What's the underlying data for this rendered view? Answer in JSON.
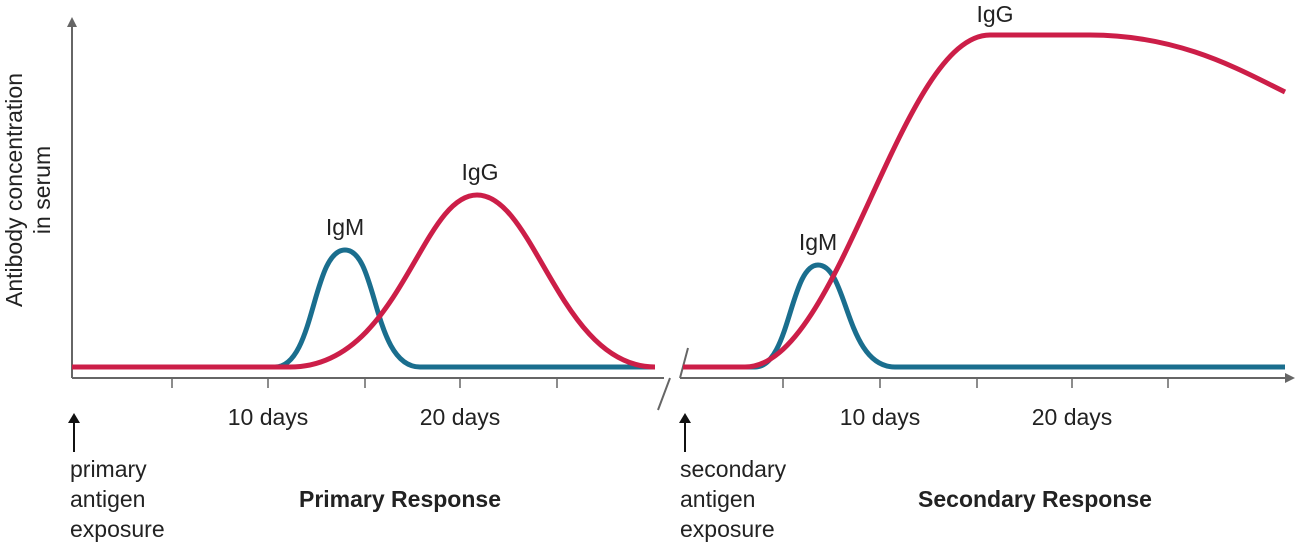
{
  "y_axis_label": [
    "Antibody concentration",
    "in serum"
  ],
  "primary": {
    "igm_label": "IgM",
    "igg_label": "IgG",
    "ticks": [
      "10 days",
      "20 days"
    ],
    "exposure": [
      "primary",
      "antigen",
      "exposure"
    ],
    "title": "Primary Response"
  },
  "secondary": {
    "igm_label": "IgM",
    "igg_label": "IgG",
    "ticks": [
      "10 days",
      "20 days"
    ],
    "exposure": [
      "secondary",
      "antigen",
      "exposure"
    ],
    "title": "Secondary Response"
  }
}
